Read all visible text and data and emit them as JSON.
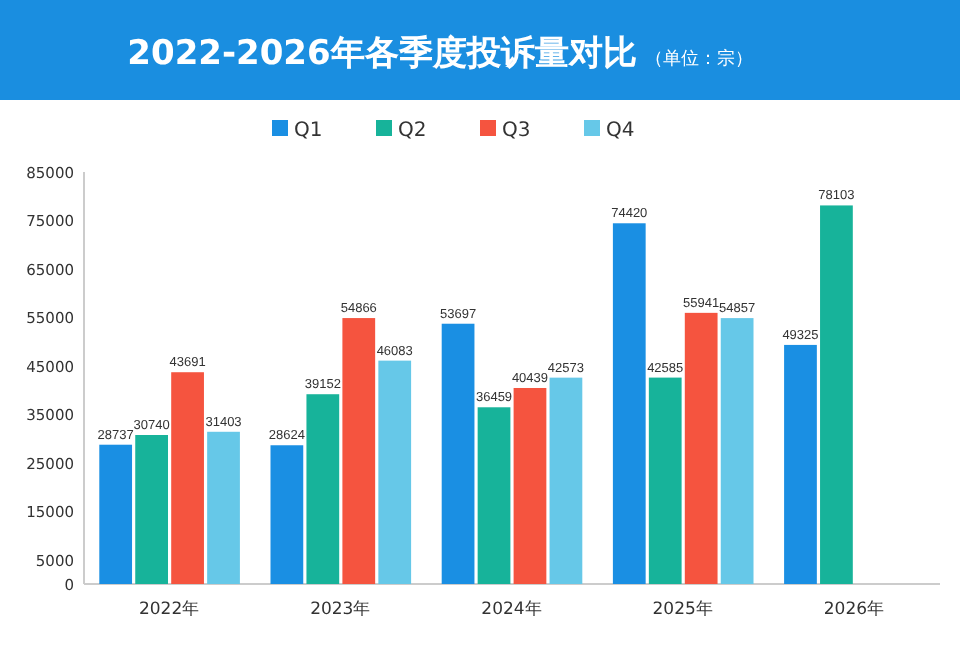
{
  "chart_data": {
    "type": "bar",
    "title": "2022-2026年各季度投诉量对比",
    "subtitle": "（单位：宗）",
    "categories": [
      "2022年",
      "2023年",
      "2024年",
      "2025年",
      "2026年"
    ],
    "series": [
      {
        "name": "Q1",
        "color": "#1a8fe3",
        "values": [
          28737,
          28624,
          53697,
          74420,
          49325
        ]
      },
      {
        "name": "Q2",
        "color": "#17b39a",
        "values": [
          30740,
          39152,
          36459,
          42585,
          78103
        ]
      },
      {
        "name": "Q3",
        "color": "#f5543f",
        "values": [
          43691,
          54866,
          40439,
          55941,
          null
        ]
      },
      {
        "name": "Q4",
        "color": "#66c8e8",
        "values": [
          31403,
          46083,
          42573,
          54857,
          null
        ]
      }
    ],
    "ylim": [
      0,
      85000
    ],
    "yticks": [
      0,
      5000,
      15000,
      25000,
      35000,
      45000,
      55000,
      65000,
      75000,
      85000
    ],
    "grid": false,
    "legend": "top",
    "data_labels": true
  }
}
